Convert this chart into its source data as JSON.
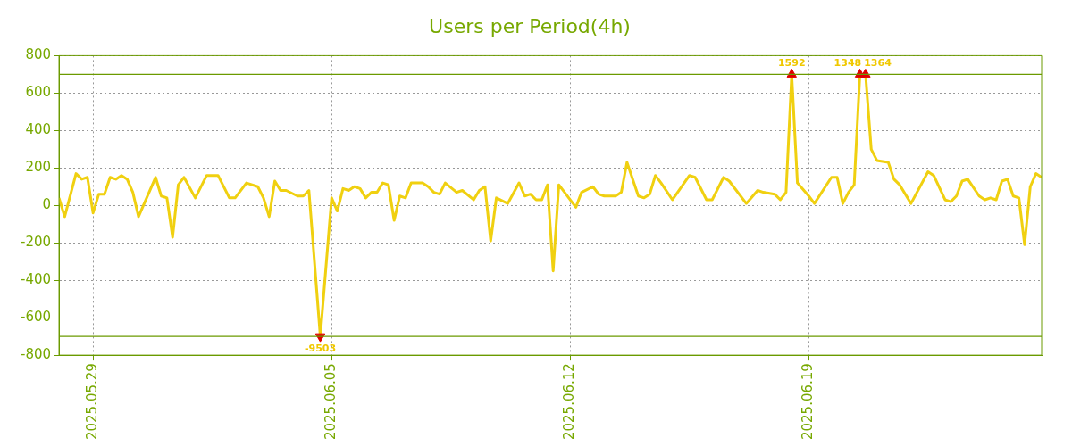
{
  "chart_data": {
    "type": "line",
    "title": "Users per Period(4h)",
    "xlim": [
      "2025-05-28T00:00",
      "2025-06-25T20:00"
    ],
    "xticks": [
      {
        "value": "2025-05-29",
        "label": "2025.05.29"
      },
      {
        "value": "2025-06-05",
        "label": "2025.06.05"
      },
      {
        "value": "2025-06-12",
        "label": "2025.06.12"
      },
      {
        "value": "2025-06-19",
        "label": "2025.06.19"
      }
    ],
    "ylim": [
      -800,
      800
    ],
    "yticks": [
      -800,
      -600,
      -400,
      -200,
      0,
      200,
      400,
      600,
      800
    ],
    "grid": true,
    "legend": false,
    "marker": "none",
    "line_style": "solid",
    "series": [
      {
        "color": "#f0d010",
        "x": [
          "2025-05-28T00:00",
          "2025-05-28T04:00",
          "2025-05-28T12:00",
          "2025-05-28T16:00",
          "2025-05-28T20:00",
          "2025-05-29T00:00",
          "2025-05-29T04:00",
          "2025-05-29T08:00",
          "2025-05-29T12:00",
          "2025-05-29T16:00",
          "2025-05-29T20:00",
          "2025-05-30T00:00",
          "2025-05-30T04:00",
          "2025-05-30T08:00",
          "2025-05-30T20:00",
          "2025-05-31T00:00",
          "2025-05-31T04:00",
          "2025-05-31T08:00",
          "2025-05-31T12:00",
          "2025-05-31T16:00",
          "2025-06-01T00:00",
          "2025-06-01T08:00",
          "2025-06-01T16:00",
          "2025-06-02T00:00",
          "2025-06-02T04:00",
          "2025-06-02T12:00",
          "2025-06-02T20:00",
          "2025-06-03T00:00",
          "2025-06-03T04:00",
          "2025-06-03T08:00",
          "2025-06-03T12:00",
          "2025-06-03T16:00",
          "2025-06-04T00:00",
          "2025-06-04T04:00",
          "2025-06-04T08:00",
          "2025-06-04T16:00",
          "2025-06-05T00:00",
          "2025-06-05T04:00",
          "2025-06-05T08:00",
          "2025-06-05T12:00",
          "2025-06-05T16:00",
          "2025-06-05T20:00",
          "2025-06-06T00:00",
          "2025-06-06T04:00",
          "2025-06-06T08:00",
          "2025-06-06T12:00",
          "2025-06-06T16:00",
          "2025-06-06T20:00",
          "2025-06-07T00:00",
          "2025-06-07T04:00",
          "2025-06-07T08:00",
          "2025-06-07T16:00",
          "2025-06-07T20:00",
          "2025-06-08T00:00",
          "2025-06-08T04:00",
          "2025-06-08T08:00",
          "2025-06-08T16:00",
          "2025-06-08T20:00",
          "2025-06-09T04:00",
          "2025-06-09T08:00",
          "2025-06-09T12:00",
          "2025-06-09T16:00",
          "2025-06-09T20:00",
          "2025-06-10T04:00",
          "2025-06-10T12:00",
          "2025-06-10T16:00",
          "2025-06-10T20:00",
          "2025-06-11T00:00",
          "2025-06-11T04:00",
          "2025-06-11T08:00",
          "2025-06-11T12:00",
          "2025-06-11T16:00",
          "2025-06-12T04:00",
          "2025-06-12T08:00",
          "2025-06-12T16:00",
          "2025-06-12T20:00",
          "2025-06-13T00:00",
          "2025-06-13T08:00",
          "2025-06-13T12:00",
          "2025-06-13T16:00",
          "2025-06-14T00:00",
          "2025-06-14T04:00",
          "2025-06-14T08:00",
          "2025-06-14T12:00",
          "2025-06-14T16:00",
          "2025-06-15T00:00",
          "2025-06-15T12:00",
          "2025-06-15T16:00",
          "2025-06-16T00:00",
          "2025-06-16T04:00",
          "2025-06-16T12:00",
          "2025-06-16T16:00",
          "2025-06-17T04:00",
          "2025-06-17T12:00",
          "2025-06-17T16:00",
          "2025-06-18T00:00",
          "2025-06-18T04:00",
          "2025-06-18T08:00",
          "2025-06-18T12:00",
          "2025-06-18T16:00",
          "2025-06-19T00:00",
          "2025-06-19T04:00",
          "2025-06-19T16:00",
          "2025-06-19T20:00",
          "2025-06-20T00:00",
          "2025-06-20T04:00",
          "2025-06-20T08:00",
          "2025-06-20T12:00",
          "2025-06-20T16:00",
          "2025-06-20T20:00",
          "2025-06-21T00:00",
          "2025-06-21T08:00",
          "2025-06-21T12:00",
          "2025-06-21T16:00",
          "2025-06-22T00:00",
          "2025-06-22T12:00",
          "2025-06-22T16:00",
          "2025-06-23T00:00",
          "2025-06-23T04:00",
          "2025-06-23T08:00",
          "2025-06-23T12:00",
          "2025-06-23T16:00",
          "2025-06-24T00:00",
          "2025-06-24T04:00",
          "2025-06-24T08:00",
          "2025-06-24T12:00",
          "2025-06-24T16:00",
          "2025-06-24T20:00",
          "2025-06-25T00:00",
          "2025-06-25T04:00",
          "2025-06-25T08:00",
          "2025-06-25T12:00",
          "2025-06-25T16:00",
          "2025-06-25T20:00"
        ],
        "values": [
          40,
          -60,
          170,
          140,
          150,
          -40,
          60,
          60,
          150,
          140,
          160,
          140,
          70,
          -60,
          150,
          50,
          40,
          -170,
          110,
          150,
          40,
          160,
          160,
          40,
          40,
          120,
          100,
          40,
          -60,
          130,
          80,
          80,
          50,
          50,
          80,
          -700,
          40,
          -30,
          90,
          80,
          100,
          90,
          40,
          70,
          70,
          120,
          110,
          -80,
          50,
          40,
          120,
          120,
          100,
          70,
          60,
          120,
          70,
          80,
          30,
          80,
          100,
          -190,
          40,
          10,
          120,
          50,
          60,
          30,
          30,
          110,
          -350,
          110,
          -10,
          70,
          100,
          60,
          50,
          50,
          70,
          230,
          50,
          40,
          60,
          160,
          120,
          30,
          160,
          150,
          30,
          30,
          150,
          130,
          10,
          80,
          70,
          60,
          30,
          70,
          700,
          120,
          50,
          10,
          150,
          150,
          10,
          70,
          110,
          700,
          700,
          300,
          240,
          230,
          140,
          110,
          10,
          180,
          160,
          30,
          20,
          50,
          130,
          140,
          50,
          30,
          40,
          30,
          130,
          140,
          50,
          40,
          -210,
          100,
          170,
          150
        ]
      },
      {
        "type": "scatter",
        "color": "#e00000",
        "marker": "triangle",
        "x": [
          "2025-06-04T16:00",
          "2025-06-18T12:00",
          "2025-06-20T12:00",
          "2025-06-20T16:00"
        ],
        "values": [
          -700,
          700,
          700,
          700
        ]
      }
    ],
    "ref_lines": [
      {
        "axis": "y",
        "value": 700,
        "color": "#6b9a00"
      },
      {
        "axis": "y",
        "value": -700,
        "color": "#6b9a00"
      }
    ],
    "annotations": [
      {
        "text": "-9503",
        "x": "2025-06-04T16:00",
        "y": -700
      },
      {
        "text": "1592",
        "x": "2025-06-18T12:00",
        "y": 700
      },
      {
        "text": "1348",
        "x": "2025-06-20T12:00",
        "y": 700
      },
      {
        "text": "1364",
        "x": "2025-06-20T16:00",
        "y": 700
      }
    ]
  }
}
